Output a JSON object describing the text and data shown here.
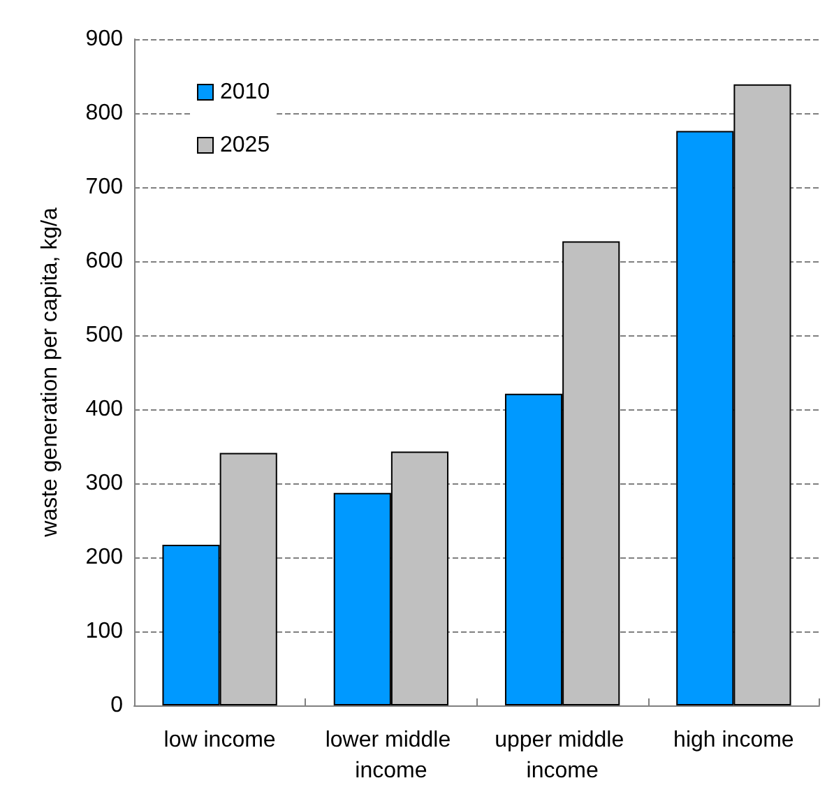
{
  "chart_data": {
    "type": "bar",
    "ylabel": "waste generation per capita, kg/a",
    "categories": [
      "low income",
      "lower middle income",
      "upper middle income",
      "high income"
    ],
    "series": [
      {
        "name": "2010",
        "color": "#0099ff",
        "values": [
          217,
          287,
          421,
          776
        ]
      },
      {
        "name": "2025",
        "color": "#c0c0c0",
        "values": [
          341,
          343,
          627,
          839
        ]
      }
    ],
    "ylim": [
      0,
      900
    ],
    "yticks": [
      0,
      100,
      200,
      300,
      400,
      500,
      600,
      700,
      800,
      900
    ],
    "grid": "y",
    "legend": "top left"
  }
}
